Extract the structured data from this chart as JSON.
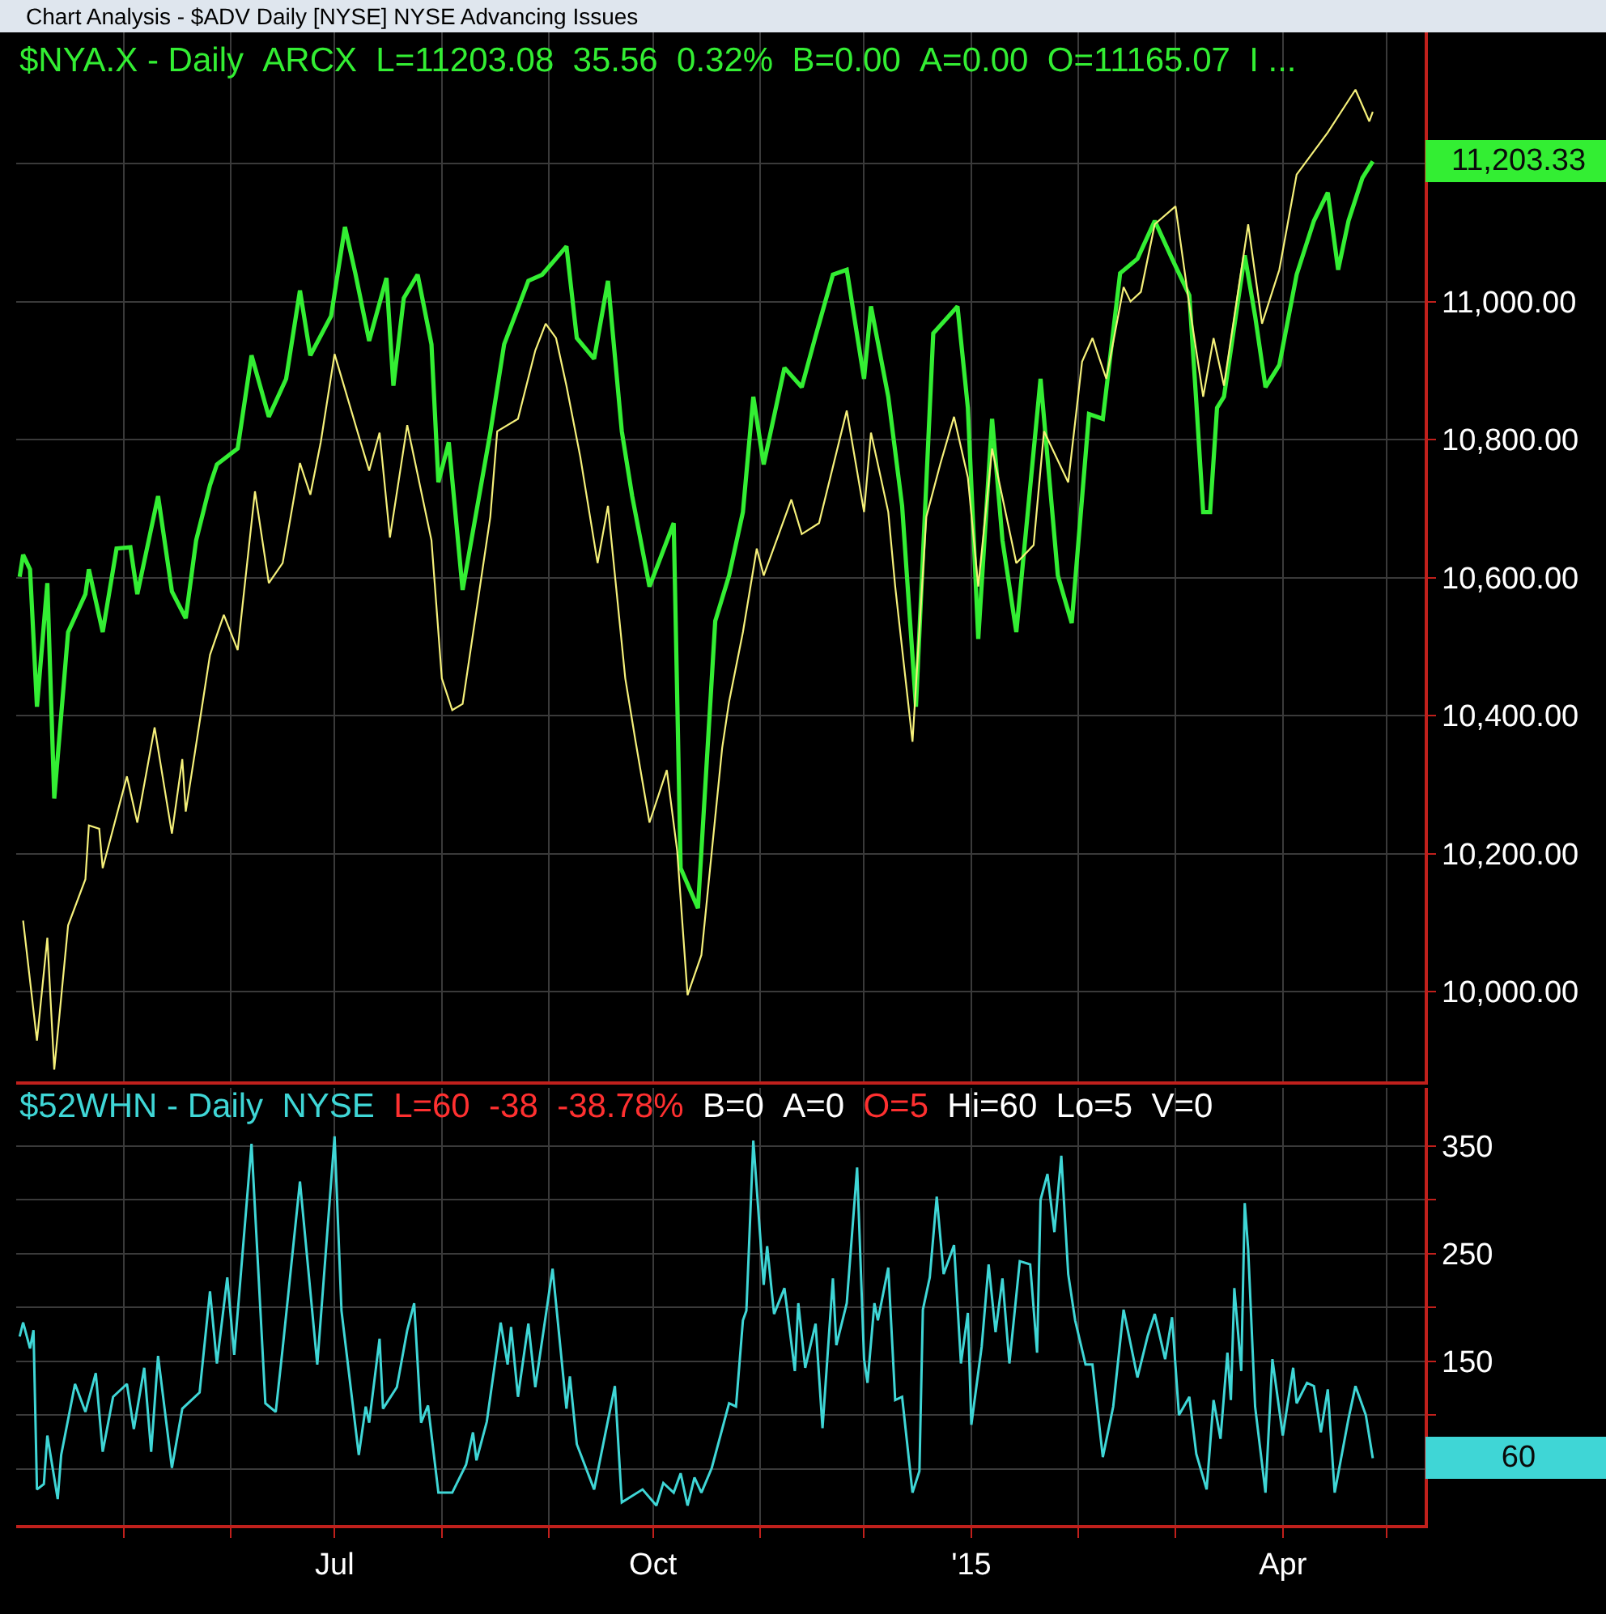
{
  "chart_data": [
    {
      "type": "line",
      "title": "Chart Analysis - $ADV Daily [NYSE] NYSE Advancing Issues",
      "subtitle": "$NYA.X - Daily  ARCX  L=11203.08  35.56  0.32%  B=0.00  A=0.00  O=11165.07  I ...",
      "series": [
        {
          "color": "#33ee33",
          "x": [
            "2014-04-01",
            "2014-04-02",
            "2014-04-04",
            "2014-04-06",
            "2014-04-09",
            "2014-04-11",
            "2014-04-15",
            "2014-04-20",
            "2014-04-21",
            "2014-04-25",
            "2014-04-29",
            "2014-05-03",
            "2014-05-05",
            "2014-05-11",
            "2014-05-15",
            "2014-05-19",
            "2014-05-22",
            "2014-05-26",
            "2014-05-28",
            "2014-06-03",
            "2014-06-07",
            "2014-06-12",
            "2014-06-17",
            "2014-06-21",
            "2014-06-24",
            "2014-06-30",
            "2014-07-04",
            "2014-07-07",
            "2014-07-11",
            "2014-07-16",
            "2014-07-18",
            "2014-07-21",
            "2014-07-25",
            "2014-07-29",
            "2014-07-31",
            "2014-08-03",
            "2014-08-07",
            "2014-08-15",
            "2014-08-19",
            "2014-08-26",
            "2014-08-30",
            "2014-09-06",
            "2014-09-09",
            "2014-09-14",
            "2014-09-18",
            "2014-09-22",
            "2014-09-25",
            "2014-09-30",
            "2014-10-07",
            "2014-10-09",
            "2014-10-14",
            "2014-10-19",
            "2014-10-23",
            "2014-10-27",
            "2014-10-30",
            "2014-11-02",
            "2014-11-08",
            "2014-11-13",
            "2014-11-17",
            "2014-11-22",
            "2014-11-26",
            "2014-12-01",
            "2014-12-03",
            "2014-12-08",
            "2014-12-12",
            "2014-12-16",
            "2014-12-21",
            "2014-12-28",
            "2014-12-31",
            "2015-01-03",
            "2015-01-07",
            "2015-01-10",
            "2015-01-14",
            "2015-01-21",
            "2015-01-26",
            "2015-01-30",
            "2015-02-04",
            "2015-02-08",
            "2015-02-13",
            "2015-02-18",
            "2015-02-23",
            "2015-02-28",
            "2015-03-05",
            "2015-03-07",
            "2015-03-09",
            "2015-03-11",
            "2015-03-13",
            "2015-03-15",
            "2015-03-21",
            "2015-03-24",
            "2015-03-27",
            "2015-03-31",
            "2015-04-05",
            "2015-04-10",
            "2015-04-14",
            "2015-04-17",
            "2015-04-20",
            "2015-04-24",
            "2015-04-27"
          ],
          "values": [
            10601,
            10633,
            10612,
            10413,
            10592,
            10280,
            10521,
            10576,
            10612,
            10521,
            10642,
            10644,
            10576,
            10718,
            10580,
            10541,
            10654,
            10734,
            10764,
            10787,
            10922,
            10833,
            10888,
            11016,
            10922,
            10979,
            11108,
            11041,
            10943,
            11034,
            10878,
            11005,
            11039,
            10938,
            10738,
            10796,
            10582,
            10810,
            10938,
            11030,
            11039,
            11080,
            10947,
            10917,
            11030,
            10812,
            10718,
            10587,
            10679,
            10179,
            10121,
            10537,
            10603,
            10695,
            10862,
            10764,
            10904,
            10876,
            10950,
            11039,
            11046,
            10888,
            10993,
            10862,
            10704,
            10413,
            10954,
            10993,
            10846,
            10511,
            10830,
            10654,
            10521,
            10888,
            10603,
            10534,
            10837,
            10830,
            11041,
            11062,
            11117,
            11062,
            11009,
            10855,
            10695,
            10695,
            10846,
            10862,
            11067,
            10979,
            10876,
            10908,
            11039,
            11117,
            11158,
            11046,
            11117,
            11179,
            11203
          ]
        },
        {
          "color": "#f5f07a",
          "x": [
            "2014-04-02",
            "2014-04-06",
            "2014-04-09",
            "2014-04-11",
            "2014-04-15",
            "2014-04-20",
            "2014-04-21",
            "2014-04-24",
            "2014-04-25",
            "2014-05-02",
            "2014-05-05",
            "2014-05-10",
            "2014-05-15",
            "2014-05-18",
            "2014-05-19",
            "2014-05-26",
            "2014-05-30",
            "2014-06-03",
            "2014-06-08",
            "2014-06-12",
            "2014-06-16",
            "2014-06-21",
            "2014-06-24",
            "2014-06-27",
            "2014-07-01",
            "2014-07-08",
            "2014-07-11",
            "2014-07-14",
            "2014-07-17",
            "2014-07-22",
            "2014-07-29",
            "2014-08-01",
            "2014-08-04",
            "2014-08-07",
            "2014-08-15",
            "2014-08-17",
            "2014-08-23",
            "2014-08-28",
            "2014-08-31",
            "2014-09-03",
            "2014-09-06",
            "2014-09-10",
            "2014-09-15",
            "2014-09-18",
            "2014-09-23",
            "2014-09-26",
            "2014-09-30",
            "2014-10-05",
            "2014-10-08",
            "2014-10-11",
            "2014-10-15",
            "2014-10-21",
            "2014-10-23",
            "2014-10-27",
            "2014-10-31",
            "2014-11-02",
            "2014-11-10",
            "2014-11-13",
            "2014-11-18",
            "2014-11-26",
            "2014-12-01",
            "2014-12-03",
            "2014-12-08",
            "2014-12-10",
            "2014-12-15",
            "2014-12-19",
            "2014-12-23",
            "2014-12-27",
            "2014-12-31",
            "2015-01-03",
            "2015-01-07",
            "2015-01-14",
            "2015-01-19",
            "2015-01-22",
            "2015-01-29",
            "2015-02-02",
            "2015-02-05",
            "2015-02-09",
            "2015-02-14",
            "2015-02-16",
            "2015-02-19",
            "2015-02-23",
            "2015-03-01",
            "2015-03-05",
            "2015-03-09",
            "2015-03-12",
            "2015-03-15",
            "2015-03-22",
            "2015-03-26",
            "2015-03-31",
            "2015-04-05",
            "2015-04-14",
            "2015-04-22",
            "2015-04-26",
            "2015-04-27"
          ],
          "values": [
            10103,
            9929,
            10078,
            9887,
            10096,
            10163,
            10241,
            10236,
            10179,
            10312,
            10245,
            10383,
            10229,
            10337,
            10261,
            10488,
            10546,
            10495,
            10725,
            10592,
            10621,
            10766,
            10720,
            10796,
            10924,
            10805,
            10755,
            10810,
            10658,
            10821,
            10654,
            10454,
            10408,
            10417,
            10688,
            10812,
            10830,
            10929,
            10968,
            10947,
            10878,
            10775,
            10621,
            10704,
            10454,
            10362,
            10245,
            10321,
            10204,
            9995,
            10053,
            10353,
            10420,
            10521,
            10642,
            10603,
            10713,
            10663,
            10679,
            10842,
            10695,
            10810,
            10695,
            10587,
            10362,
            10688,
            10764,
            10833,
            10745,
            10587,
            10787,
            10621,
            10647,
            10812,
            10738,
            10913,
            10947,
            10888,
            11021,
            11000,
            11014,
            11112,
            11138,
            10995,
            10862,
            10947,
            10878,
            11112,
            10968,
            11046,
            11184,
            11245,
            11307,
            11261,
            11275
          ]
        }
      ],
      "xlim": [
        "2014-03-31",
        "2015-05-12"
      ],
      "xticks": [
        {
          "value": "2014-05-01",
          "label": null
        },
        {
          "value": "2014-06-01",
          "label": null
        },
        {
          "value": "2014-07-01",
          "label": null
        },
        {
          "value": "2014-08-01",
          "label": null
        },
        {
          "value": "2014-09-01",
          "label": null
        },
        {
          "value": "2014-10-01",
          "label": null
        },
        {
          "value": "2014-11-01",
          "label": null
        },
        {
          "value": "2014-12-01",
          "label": null
        },
        {
          "value": "2015-01-01",
          "label": null
        },
        {
          "value": "2015-02-01",
          "label": null
        },
        {
          "value": "2015-03-01",
          "label": null
        },
        {
          "value": "2015-04-01",
          "label": null
        },
        {
          "value": "2015-05-01",
          "label": null
        }
      ],
      "ylim": [
        9870,
        11390
      ],
      "yticks": [
        {
          "value": 10000,
          "label": "10,000.00"
        },
        {
          "value": 10200,
          "label": "10,200.00"
        },
        {
          "value": 10400,
          "label": "10,400.00"
        },
        {
          "value": 10600,
          "label": "10,600.00"
        },
        {
          "value": 10800,
          "label": "10,800.00"
        },
        {
          "value": 11000,
          "label": "11,000.00"
        },
        {
          "value": 11200,
          "label": null
        }
      ],
      "annotations": [
        "11,203.33"
      ],
      "grid": true,
      "tick_labels": "y"
    },
    {
      "type": "line",
      "title": "$52WHN - Daily  NYSE",
      "subtitle": "L=60  -38  -38.78%  B=0  A=0  O=5  Hi=60  Lo=5  V=0",
      "series": [
        {
          "color": "#3fd6d6",
          "x": [
            "2014-04-01",
            "2014-04-02",
            "2014-04-04",
            "2014-04-05",
            "2014-04-06",
            "2014-04-08",
            "2014-04-09",
            "2014-04-12",
            "2014-04-13",
            "2014-04-17",
            "2014-04-20",
            "2014-04-23",
            "2014-04-25",
            "2014-04-28",
            "2014-05-02",
            "2014-05-04",
            "2014-05-07",
            "2014-05-09",
            "2014-05-11",
            "2014-05-15",
            "2014-05-18",
            "2014-05-23",
            "2014-05-26",
            "2014-05-28",
            "2014-05-31",
            "2014-06-02",
            "2014-06-07",
            "2014-06-11",
            "2014-06-14",
            "2014-06-16",
            "2014-06-21",
            "2014-06-26",
            "2014-07-01",
            "2014-07-03",
            "2014-07-08",
            "2014-07-10",
            "2014-07-11",
            "2014-07-14",
            "2014-07-15",
            "2014-07-19",
            "2014-07-22",
            "2014-07-24",
            "2014-07-26",
            "2014-07-28",
            "2014-07-31",
            "2014-08-04",
            "2014-08-08",
            "2014-08-10",
            "2014-08-11",
            "2014-08-14",
            "2014-08-18",
            "2014-08-20",
            "2014-08-21",
            "2014-08-23",
            "2014-08-26",
            "2014-08-28",
            "2014-09-02",
            "2014-09-06",
            "2014-09-07",
            "2014-09-09",
            "2014-09-14",
            "2014-09-20",
            "2014-09-22",
            "2014-09-28",
            "2014-10-02",
            "2014-10-04",
            "2014-10-07",
            "2014-10-09",
            "2014-10-11",
            "2014-10-13",
            "2014-10-15",
            "2014-10-18",
            "2014-10-23",
            "2014-10-25",
            "2014-10-27",
            "2014-10-28",
            "2014-10-30",
            "2014-11-02",
            "2014-11-03",
            "2014-11-05",
            "2014-11-08",
            "2014-11-11",
            "2014-11-12",
            "2014-11-14",
            "2014-11-17",
            "2014-11-19",
            "2014-11-22",
            "2014-11-23",
            "2014-11-26",
            "2014-11-29",
            "2014-12-01",
            "2014-12-02",
            "2014-12-04",
            "2014-12-05",
            "2014-12-08",
            "2014-12-10",
            "2014-12-12",
            "2014-12-15",
            "2014-12-17",
            "2014-12-18",
            "2014-12-20",
            "2014-12-22",
            "2014-12-24",
            "2014-12-27",
            "2014-12-29",
            "2014-12-31",
            "2015-01-01",
            "2015-01-04",
            "2015-01-06",
            "2015-01-08",
            "2015-01-10",
            "2015-01-12",
            "2015-01-15",
            "2015-01-18",
            "2015-01-20",
            "2015-01-21",
            "2015-01-23",
            "2015-01-25",
            "2015-01-27",
            "2015-01-29",
            "2015-01-31",
            "2015-02-03",
            "2015-02-05",
            "2015-02-08",
            "2015-02-11",
            "2015-02-14",
            "2015-02-18",
            "2015-02-21",
            "2015-02-23",
            "2015-02-26",
            "2015-02-28",
            "2015-03-02",
            "2015-03-05",
            "2015-03-07",
            "2015-03-10",
            "2015-03-12",
            "2015-03-14",
            "2015-03-16",
            "2015-03-17",
            "2015-03-18",
            "2015-03-20",
            "2015-03-21",
            "2015-03-22",
            "2015-03-24",
            "2015-03-27",
            "2015-03-29",
            "2015-04-01",
            "2015-04-04",
            "2015-04-05",
            "2015-04-08",
            "2015-04-10",
            "2015-04-12",
            "2015-04-14",
            "2015-04-16",
            "2015-04-20",
            "2015-04-22",
            "2015-04-25",
            "2015-04-27"
          ],
          "values": [
            173,
            186,
            162,
            179,
            31,
            36,
            81,
            22,
            63,
            129,
            103,
            139,
            66,
            117,
            129,
            87,
            144,
            66,
            155,
            51,
            106,
            121,
            215,
            148,
            228,
            156,
            352,
            111,
            103,
            162,
            317,
            147,
            359,
            197,
            63,
            108,
            93,
            171,
            106,
            126,
            179,
            204,
            93,
            109,
            28,
            28,
            54,
            84,
            58,
            94,
            186,
            147,
            182,
            117,
            185,
            126,
            236,
            106,
            136,
            73,
            31,
            127,
            19,
            31,
            16,
            37,
            28,
            46,
            16,
            42,
            28,
            51,
            111,
            108,
            188,
            197,
            355,
            221,
            257,
            194,
            218,
            141,
            204,
            144,
            185,
            88,
            227,
            165,
            204,
            330,
            152,
            130,
            204,
            188,
            237,
            114,
            117,
            28,
            48,
            198,
            228,
            303,
            231,
            258,
            148,
            195,
            91,
            164,
            240,
            177,
            227,
            148,
            243,
            240,
            158,
            300,
            324,
            270,
            341,
            231,
            188,
            147,
            147,
            61,
            108,
            198,
            135,
            174,
            194,
            152,
            191,
            100,
            117,
            64,
            31,
            114,
            78,
            158,
            114,
            218,
            141,
            297,
            254,
            108,
            28,
            152,
            81,
            144,
            111,
            130,
            127,
            84,
            124,
            28,
            97,
            127,
            100,
            60
          ]
        }
      ],
      "xlim": [
        "2014-03-31",
        "2015-05-12"
      ],
      "xticks": [
        {
          "value": "2014-05-01",
          "label": null
        },
        {
          "value": "2014-06-01",
          "label": null
        },
        {
          "value": "2014-07-01",
          "label": "Jul"
        },
        {
          "value": "2014-08-01",
          "label": null
        },
        {
          "value": "2014-09-01",
          "label": null
        },
        {
          "value": "2014-10-01",
          "label": "Oct"
        },
        {
          "value": "2014-11-01",
          "label": null
        },
        {
          "value": "2014-12-01",
          "label": null
        },
        {
          "value": "2015-01-01",
          "label": "'15"
        },
        {
          "value": "2015-02-01",
          "label": null
        },
        {
          "value": "2015-03-01",
          "label": null
        },
        {
          "value": "2015-04-01",
          "label": "Apr"
        },
        {
          "value": "2015-05-01",
          "label": null
        }
      ],
      "ylim": [
        -2,
        404
      ],
      "yticks": [
        {
          "value": 50,
          "label": null
        },
        {
          "value": 100,
          "label": null
        },
        150,
        {
          "value": 200,
          "label": null
        },
        250,
        {
          "value": 300,
          "label": null
        },
        350
      ],
      "annotations": [
        "60"
      ],
      "grid": true
    }
  ]
}
